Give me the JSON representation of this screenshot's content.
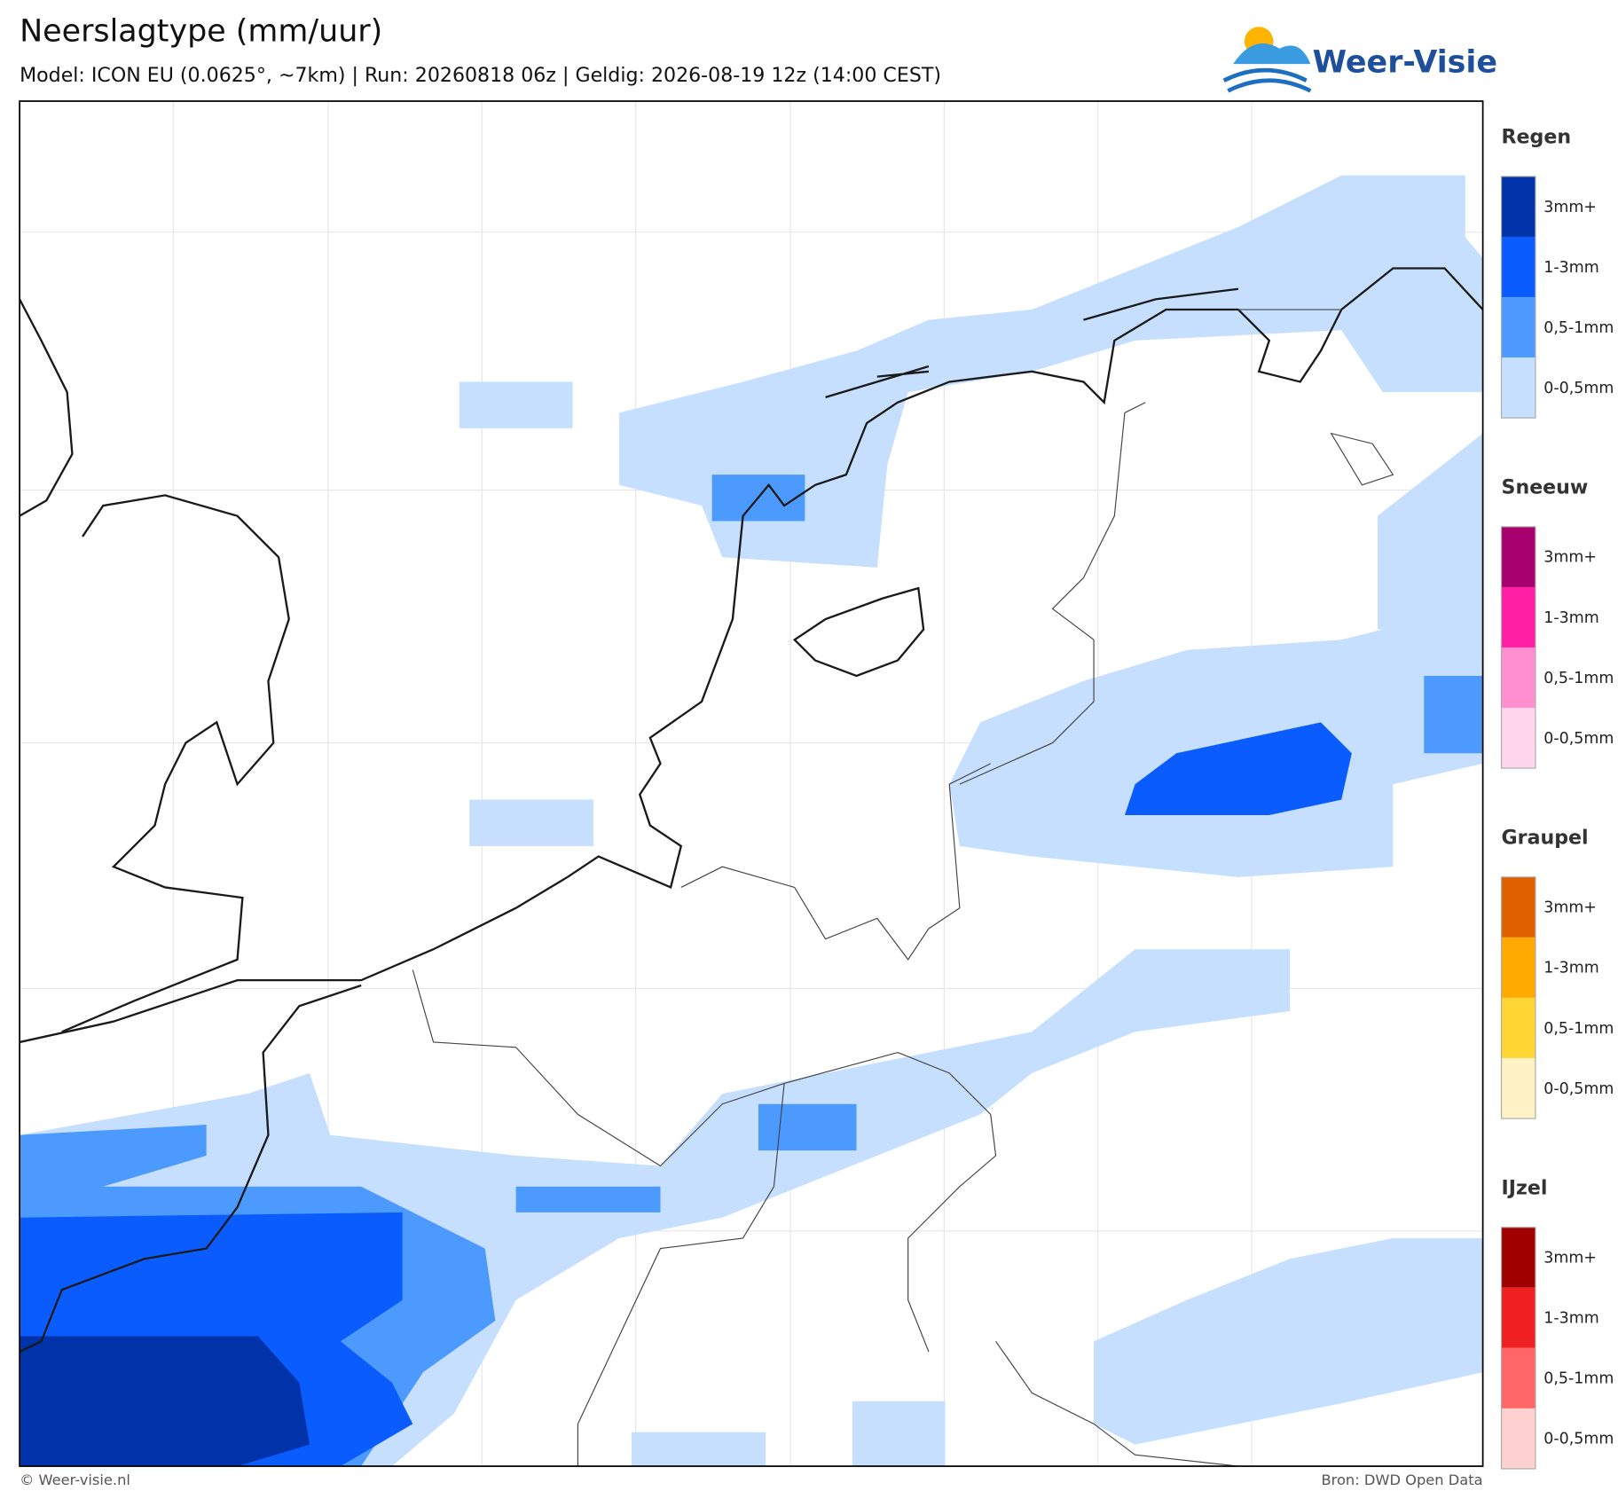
{
  "header": {
    "title": "Neerslagtype (mm/uur)",
    "subtitle": "Model: ICON EU (0.0625°, ~7km)  |  Run: 20260818 06z  |  Geldig: 2026-08-19 12z (14:00 CEST)",
    "logo": "Weer-Visie"
  },
  "legend": [
    {
      "title": "Regen",
      "items": [
        {
          "label": "3mm+",
          "color": "#0033aa"
        },
        {
          "label": "1-3mm",
          "color": "#0a5cff"
        },
        {
          "label": "0,5-1mm",
          "color": "#4d9aff"
        },
        {
          "label": "0-0,5mm",
          "color": "#c6dfff"
        }
      ]
    },
    {
      "title": "Sneeuw",
      "items": [
        {
          "label": "3mm+",
          "color": "#a8006e"
        },
        {
          "label": "1-3mm",
          "color": "#ff1fa5"
        },
        {
          "label": "0,5-1mm",
          "color": "#ff8fcf"
        },
        {
          "label": "0-0,5mm",
          "color": "#ffd6ec"
        }
      ]
    },
    {
      "title": "Graupel",
      "items": [
        {
          "label": "3mm+",
          "color": "#e06000"
        },
        {
          "label": "1-3mm",
          "color": "#ffaa00"
        },
        {
          "label": "0,5-1mm",
          "color": "#ffd633"
        },
        {
          "label": "0-0,5mm",
          "color": "#fff2c6"
        }
      ]
    },
    {
      "title": "IJzel",
      "items": [
        {
          "label": "3mm+",
          "color": "#a00000"
        },
        {
          "label": "1-3mm",
          "color": "#ee2020"
        },
        {
          "label": "0,5-1mm",
          "color": "#ff6666"
        },
        {
          "label": "0-0,5mm",
          "color": "#ffd0d0"
        }
      ]
    }
  ],
  "footer": {
    "copyright": "© Weer-visie.nl",
    "source": "Bron: DWD Open Data"
  }
}
